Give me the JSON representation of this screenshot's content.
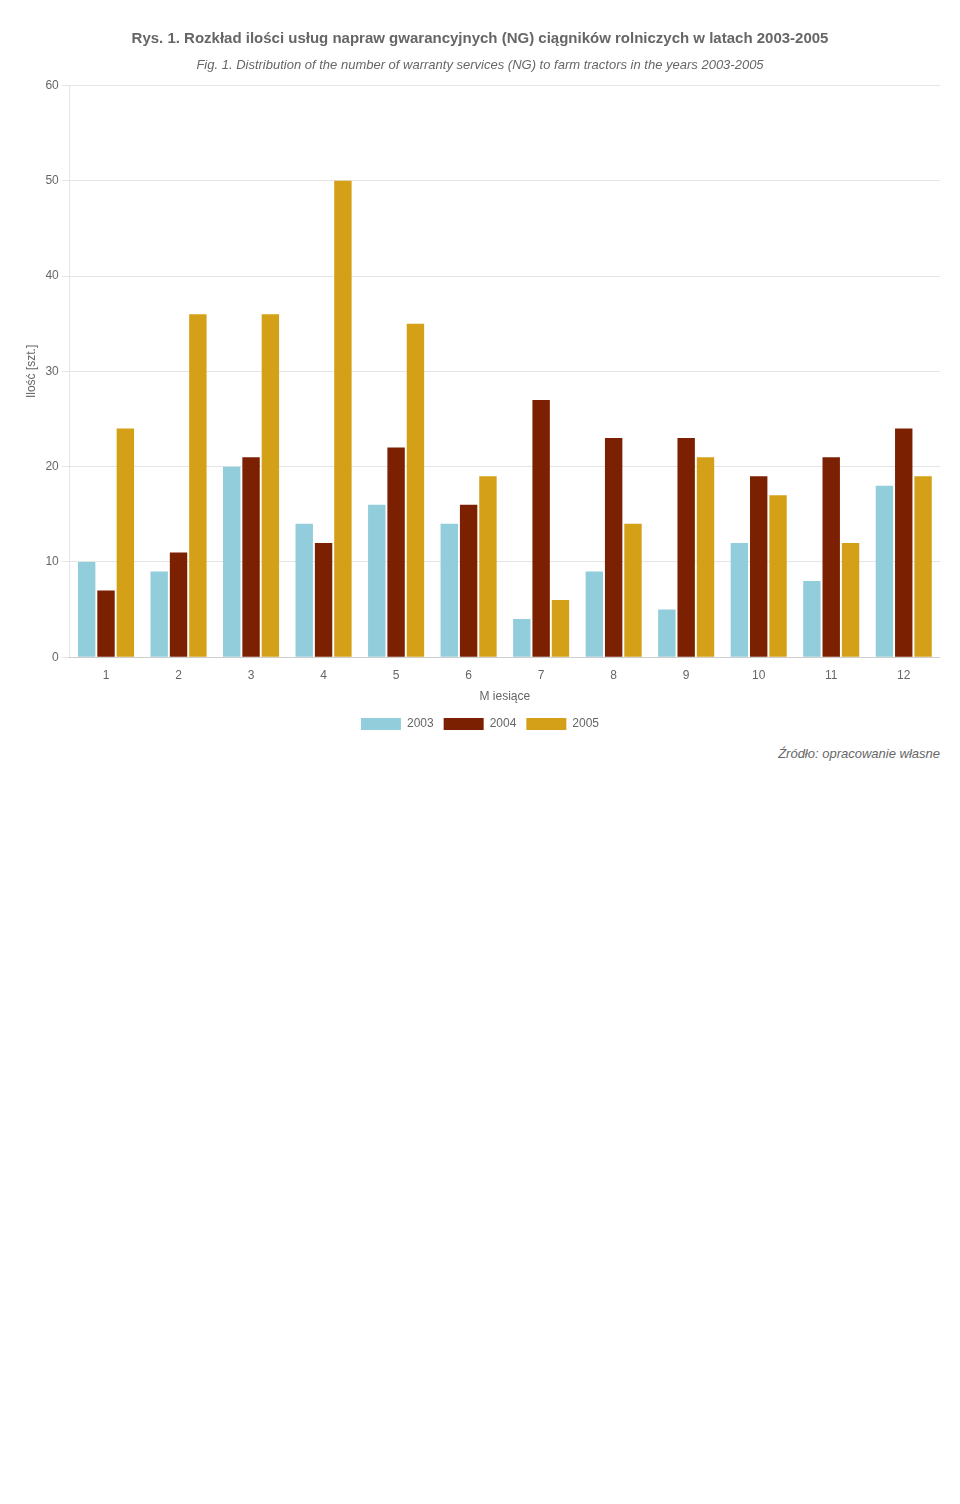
{
  "chart_data": {
    "type": "bar",
    "title": "Rys. 1. Rozkład ilości usług napraw gwarancyjnych (NG) ciągników rolniczych w latach 2003-2005",
    "subtitle": "Fig. 1. Distribution of the number of warranty services (NG) to farm tractors in the years 2003-2005",
    "x_label": "M iesiące",
    "y_label": "Ilość [szt.]",
    "categories": [
      "1",
      "2",
      "3",
      "4",
      "5",
      "6",
      "7",
      "8",
      "9",
      "10",
      "11",
      "12"
    ],
    "series": [
      {
        "name": "2003",
        "color": "#92CDDC",
        "values": [
          10,
          9,
          20,
          14,
          16,
          14,
          4,
          9,
          5,
          12,
          8,
          18
        ]
      },
      {
        "name": "2004",
        "color": "#7B2000",
        "values": [
          7,
          11,
          21,
          12,
          22,
          16,
          27,
          23,
          23,
          19,
          21,
          24
        ]
      },
      {
        "name": "2005",
        "color": "#D4A017",
        "values": [
          24,
          36,
          36,
          50,
          35,
          19,
          6,
          14,
          21,
          17,
          12,
          19
        ]
      }
    ],
    "ylim": [
      0,
      60
    ],
    "yticks": [
      0,
      10,
      20,
      30,
      40,
      50,
      60
    ],
    "grid": true,
    "legend": "bottom",
    "annotations": [
      "Źródło: opracowanie własne"
    ]
  }
}
